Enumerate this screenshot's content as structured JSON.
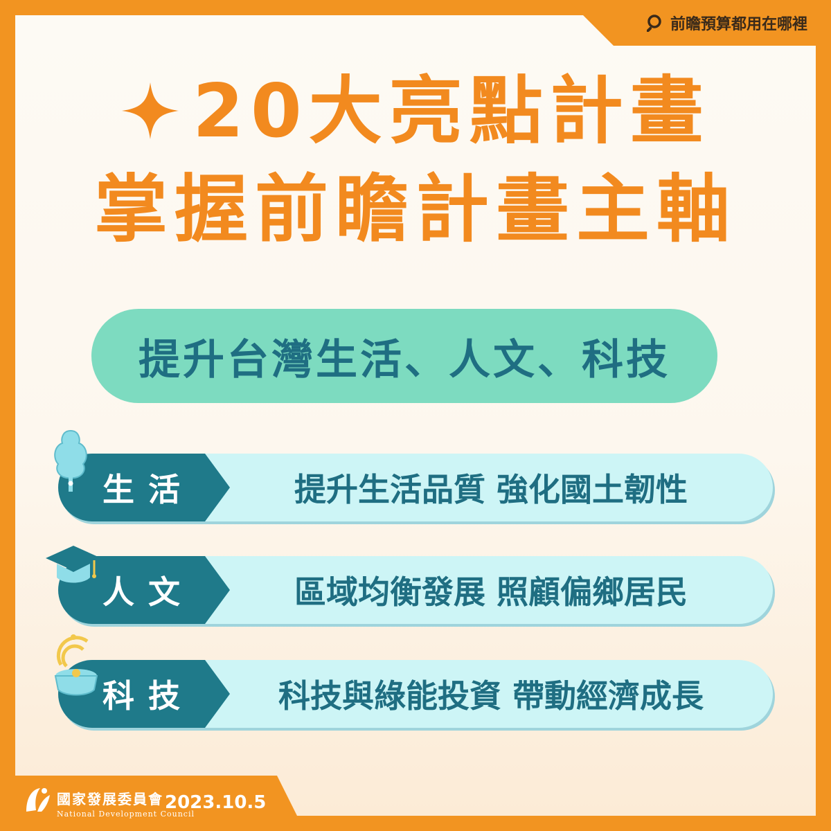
{
  "header": {
    "search_label": "前瞻預算都用在哪裡",
    "search_icon": "magnifier-icon"
  },
  "title": {
    "line1": "20大亮點計畫",
    "line2": "掌握前瞻計畫主軸",
    "star_icon": "sparkle-star-icon"
  },
  "subtitle": "提升台灣生活、人文、科技",
  "rows": [
    {
      "label": "生活",
      "description": "提升生活品質 強化國土韌性",
      "icon": "tree-icon"
    },
    {
      "label": "人文",
      "description": "區域均衡發展 照顧偏鄉居民",
      "icon": "graduation-cap-icon"
    },
    {
      "label": "科技",
      "description": "科技與綠能投資 帶動經濟成長",
      "icon": "wifi-device-icon"
    }
  ],
  "footer": {
    "org_name_zh": "國家發展委員會",
    "org_name_en": "National Development Council",
    "date": "2023.10.5"
  },
  "colors": {
    "orange": "#f29421",
    "title_orange": "#f28a1f",
    "teal_dark": "#1f7a8a",
    "teal_text": "#1f6e82",
    "mint": "#7ddbc0",
    "row_bg": "#cdf5f6"
  }
}
